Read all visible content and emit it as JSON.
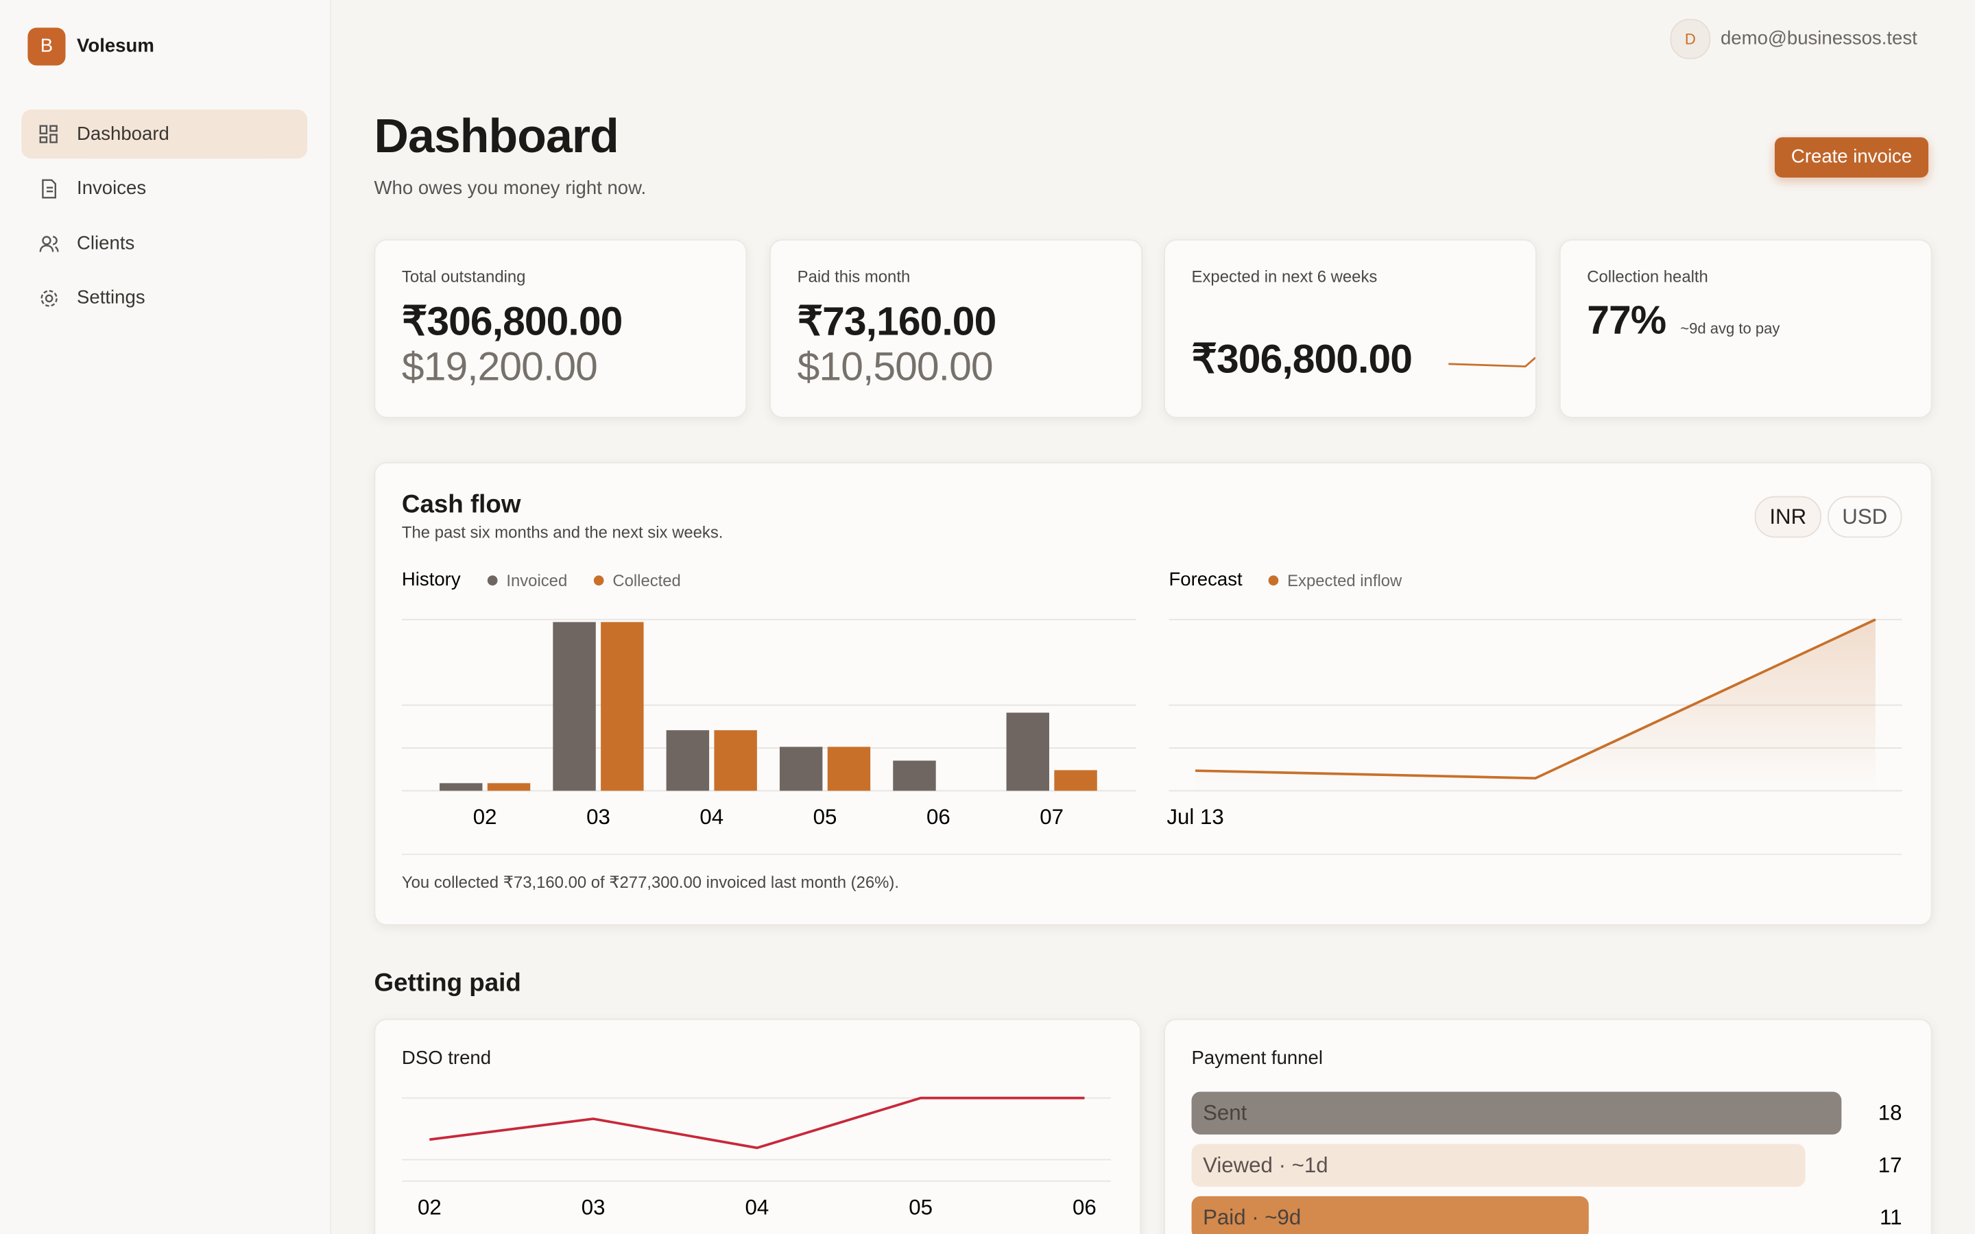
{
  "sidebar": {
    "logo": "B",
    "brand": "Volesum",
    "nav": [
      "Dashboard",
      "Invoices",
      "Clients",
      "Settings"
    ]
  },
  "header": {
    "avatar": "D",
    "email": "demo@businessos.test",
    "title": "Dashboard",
    "subtitle": "Who owes you money right now.",
    "button": "Create invoice"
  },
  "kpis": [
    {
      "label": "Total outstanding",
      "values": [
        "₹306,800.00",
        "$19,200.00"
      ]
    },
    {
      "label": "Paid this month",
      "values": [
        "₹73,160.00",
        "$10,500.00"
      ]
    },
    {
      "label": "Expected in next 6 weeks",
      "values": [
        "₹306,800.00"
      ]
    },
    {
      "label": "Collection health",
      "value": "77%",
      "note": "~9d avg to pay"
    }
  ],
  "cash_flow": {
    "title": "Cash flow",
    "subtitle": "The past six months and the next six weeks.",
    "currencies": [
      "INR",
      "USD"
    ],
    "history": {
      "type": "bar",
      "title": "History",
      "categories": [
        "02",
        "03",
        "04",
        "05",
        "06",
        "07"
      ],
      "series": [
        {
          "name": "Invoiced",
          "color": "#6f6661",
          "values": [
            27000,
            599000,
            215000,
            156000,
            107000,
            277300
          ]
        },
        {
          "name": "Collected",
          "color": "#c8702a",
          "values": [
            27000,
            599000,
            215000,
            156000,
            0,
            73160
          ]
        }
      ],
      "ylim": [
        0,
        608000
      ]
    },
    "forecast": {
      "type": "line",
      "title": "Forecast",
      "categories": [
        "Jul 13",
        null,
        null
      ],
      "series": [
        {
          "name": "Expected inflow",
          "color": "#c8702a",
          "values": [
            36000,
            22500,
            306800
          ]
        }
      ],
      "ylim": [
        0,
        306800
      ]
    },
    "footnote": "You collected ₹73,160.00 of ₹277,300.00 invoiced last month (26%)."
  },
  "getting_paid": {
    "title": "Getting paid",
    "dso": {
      "type": "line",
      "title": "DSO trend",
      "categories": [
        "02",
        "03",
        "04",
        "05",
        "06"
      ],
      "values": [
        20,
        30,
        16,
        40,
        40
      ],
      "color": "#c8283a",
      "ylim": [
        0,
        40
      ]
    },
    "funnel": {
      "type": "bar",
      "title": "Payment funnel",
      "categories": [
        "Sent",
        "Viewed · ~1d",
        "Paid · ~9d"
      ],
      "values": [
        18,
        17,
        11
      ],
      "colors": [
        "#8a837e",
        "#f5e6da",
        "#d4894d"
      ],
      "xlim": [
        0,
        18
      ]
    }
  }
}
